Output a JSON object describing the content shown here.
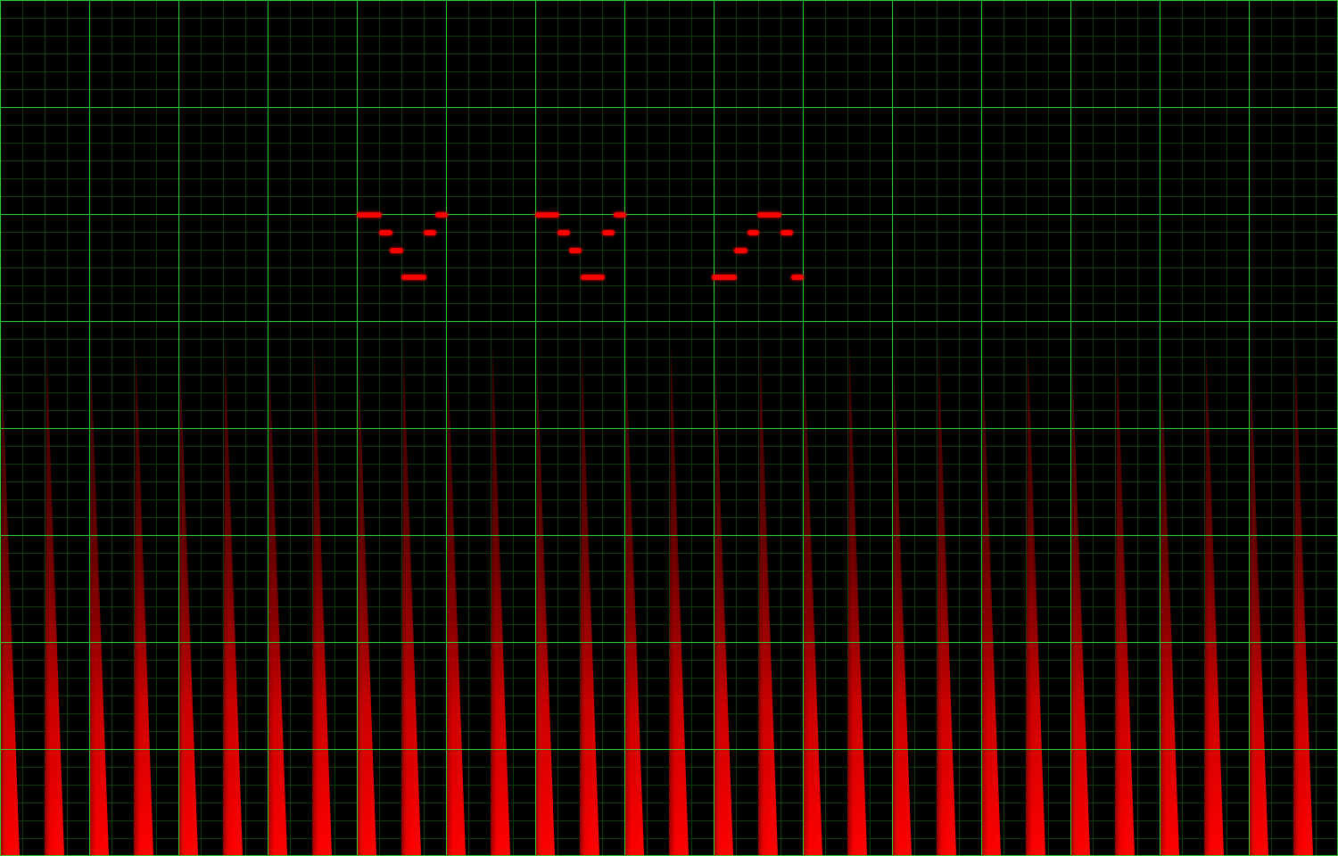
{
  "colors": {
    "background": "#000000",
    "grid_major": "#2ee62e",
    "grid_minor": "#0b3a0b",
    "spike": "#ff0000",
    "note": "#ff0000"
  },
  "grid": {
    "major_columns": 15,
    "major_rows": 8,
    "minor_per_major_x": 4,
    "minor_per_major_y": 6
  },
  "spikes": {
    "count": 30,
    "shape": "red-gradient-spike",
    "fade": "bottom-to-top"
  },
  "note_groups": [
    {
      "name": "note-group-1",
      "icon": "descending-v-pattern"
    },
    {
      "name": "note-group-2",
      "icon": "descending-v-pattern"
    },
    {
      "name": "note-group-3",
      "icon": "ascending-caret-pattern"
    }
  ]
}
